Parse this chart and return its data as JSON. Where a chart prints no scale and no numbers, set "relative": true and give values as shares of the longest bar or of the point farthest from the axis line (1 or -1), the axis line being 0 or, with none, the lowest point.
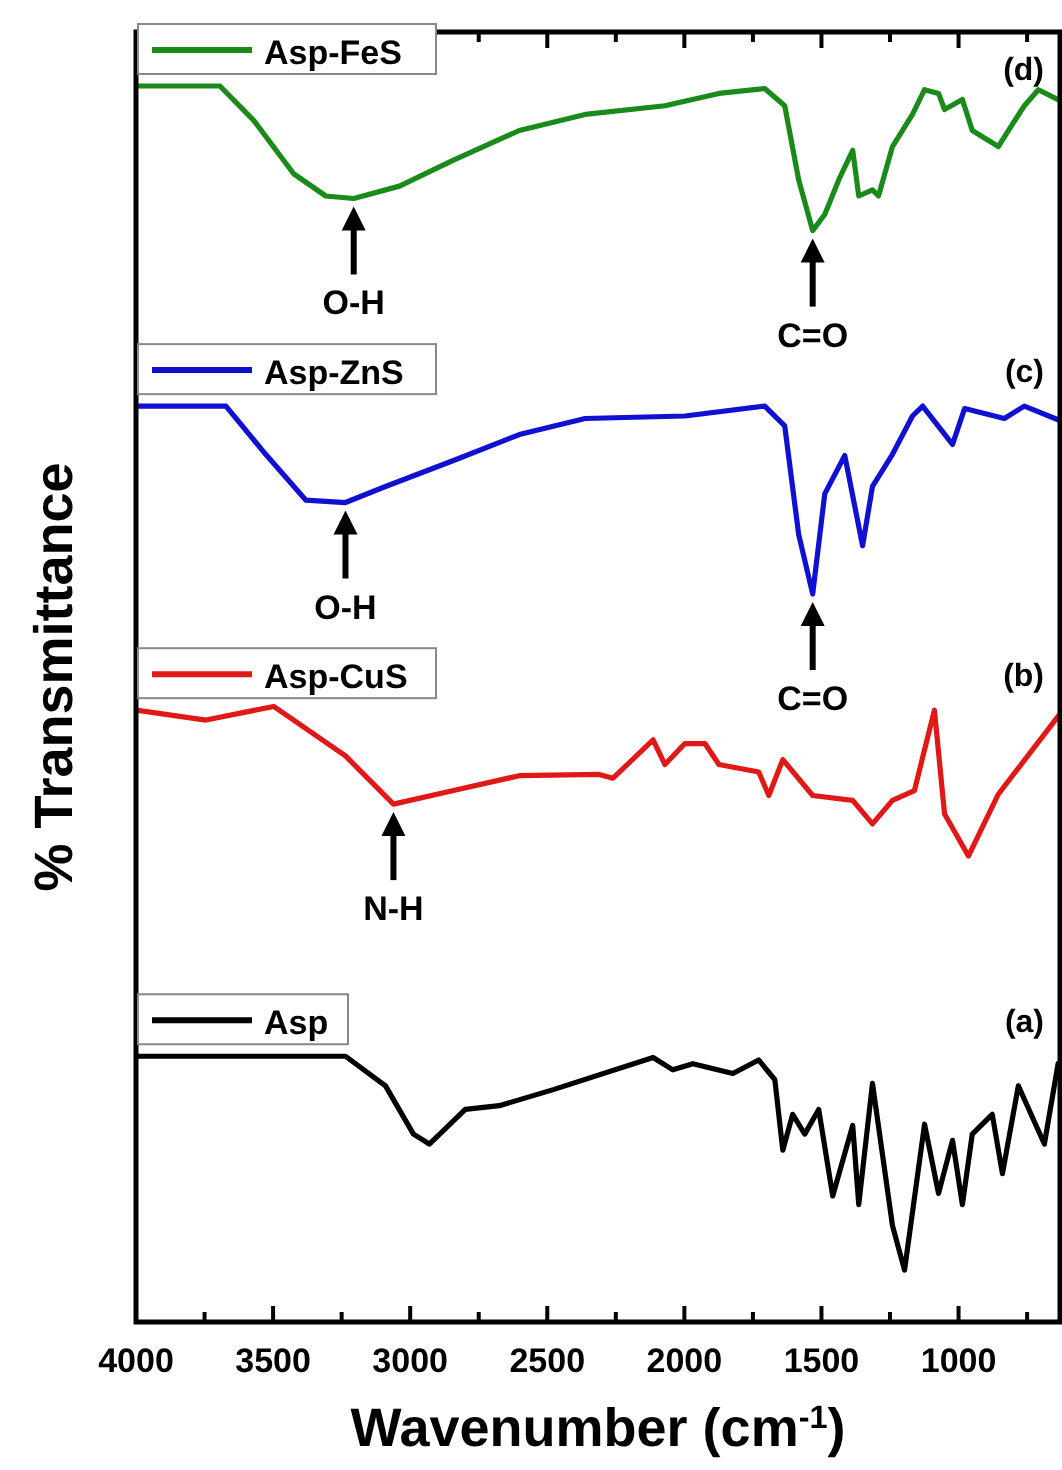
{
  "chart_data": {
    "type": "line",
    "relative": true,
    "xlabel": "Wavenumber (cm$^{-1}$)",
    "ylabel": "% Transmittance",
    "xlim": [
      4000,
      630
    ],
    "xticks": [
      4000,
      {
        "value": 3750,
        "label": null
      },
      3500,
      {
        "value": 3250,
        "label": null
      },
      3000,
      {
        "value": 2750,
        "label": null
      },
      2500,
      {
        "value": 2250,
        "label": null
      },
      2000,
      {
        "value": 1750,
        "label": null
      },
      1500,
      {
        "value": 1250,
        "label": null
      },
      1000,
      {
        "value": 750,
        "label": null
      }
    ],
    "tick_labels": "x",
    "grid": false,
    "legend": "left",
    "marker": "none",
    "line_style": "solid",
    "series": [
      {
        "name": "Asp-FeS",
        "color": "#1a8a1a",
        "x": [
          4000,
          3694,
          3570,
          3425,
          3308,
          3206,
          3039,
          2842,
          2602,
          2362,
          2071,
          1874,
          1707,
          1634,
          1583,
          1532,
          1488,
          1437,
          1386,
          1364,
          1314,
          1292,
          1241,
          1168,
          1124,
          1073,
          1051,
          986,
          950,
          855,
          804,
          760,
          709,
          637
        ],
        "values": [
          1.0,
          1.0,
          0.972,
          0.929,
          0.911,
          0.909,
          0.919,
          0.94,
          0.964,
          0.977,
          0.984,
          0.994,
          0.998,
          0.984,
          0.924,
          0.883,
          0.896,
          0.924,
          0.948,
          0.911,
          0.916,
          0.911,
          0.951,
          0.977,
          0.997,
          0.994,
          0.981,
          0.989,
          0.964,
          0.951,
          0.969,
          0.984,
          0.997,
          0.989
        ]
      },
      {
        "name": "Asp-ZnS",
        "color": "#1010d0",
        "x": [
          4000,
          3672,
          3527,
          3381,
          3236,
          3090,
          2842,
          2602,
          2362,
          1998,
          1707,
          1634,
          1583,
          1532,
          1488,
          1415,
          1350,
          1314,
          1241,
          1168,
          1131,
          1022,
          978,
          833,
          760,
          637
        ],
        "values": [
          0.741,
          0.741,
          0.702,
          0.665,
          0.663,
          0.676,
          0.697,
          0.718,
          0.731,
          0.733,
          0.741,
          0.725,
          0.637,
          0.589,
          0.67,
          0.701,
          0.628,
          0.676,
          0.702,
          0.733,
          0.741,
          0.71,
          0.739,
          0.731,
          0.741,
          0.73
        ]
      },
      {
        "name": "Asp-CuS",
        "color": "#e01818",
        "x": [
          4000,
          3745,
          3498,
          3425,
          3236,
          3061,
          2842,
          2602,
          2311,
          2260,
          2114,
          2071,
          1998,
          1925,
          1874,
          1729,
          1692,
          1641,
          1532,
          1386,
          1314,
          1241,
          1161,
          1088,
          1051,
          964,
          855,
          637
        ],
        "values": [
          0.495,
          0.487,
          0.498,
          0.487,
          0.458,
          0.419,
          0.43,
          0.442,
          0.443,
          0.44,
          0.471,
          0.451,
          0.468,
          0.468,
          0.451,
          0.445,
          0.426,
          0.455,
          0.426,
          0.422,
          0.403,
          0.422,
          0.43,
          0.495,
          0.411,
          0.377,
          0.427,
          0.49
        ]
      },
      {
        "name": "Asp",
        "color": "#000000",
        "x": [
          4000,
          3236,
          3090,
          2988,
          2930,
          2799,
          2675,
          2478,
          2114,
          2042,
          1969,
          1823,
          1729,
          1670,
          1641,
          1605,
          1561,
          1510,
          1459,
          1386,
          1364,
          1314,
          1241,
          1197,
          1124,
          1073,
          1022,
          986,
          950,
          877,
          840,
          782,
          687,
          637
        ],
        "values": [
          0.215,
          0.215,
          0.191,
          0.152,
          0.144,
          0.172,
          0.175,
          0.188,
          0.214,
          0.204,
          0.209,
          0.201,
          0.212,
          0.196,
          0.139,
          0.168,
          0.152,
          0.172,
          0.102,
          0.159,
          0.095,
          0.193,
          0.078,
          0.042,
          0.16,
          0.104,
          0.147,
          0.095,
          0.152,
          0.168,
          0.12,
          0.191,
          0.144,
          0.209
        ]
      }
    ],
    "annotations": [
      {
        "text": "O-H",
        "x": 3206,
        "y": 0.909
      },
      {
        "text": "C=O",
        "x": 1532,
        "y": 0.883
      },
      {
        "text": "O-H",
        "x": 3236,
        "y": 0.663
      },
      {
        "text": "C=O",
        "x": 1532,
        "y": 0.589
      },
      {
        "text": "N-H",
        "x": 3061,
        "y": 0.419
      },
      "(d)",
      "(c)",
      "(b)",
      "(a)"
    ]
  }
}
